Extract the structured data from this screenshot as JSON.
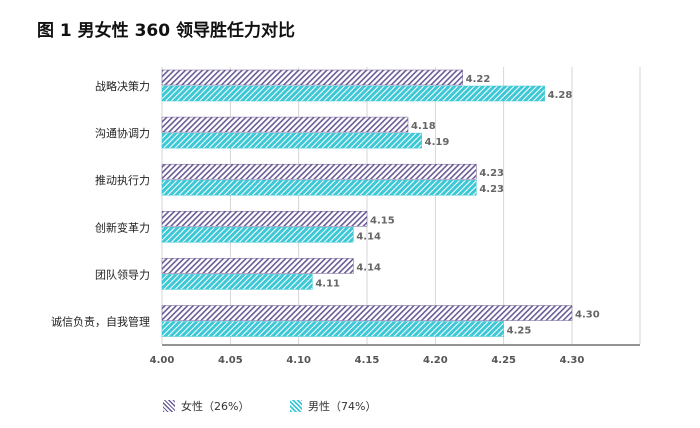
{
  "title": "图 1  男女性 360 领导胜任力对比",
  "colors": {
    "female": "#6b5b95",
    "male": "#3ec8d6",
    "axis": "#555555",
    "gridline": "#cccccc"
  },
  "chart_data": {
    "type": "bar",
    "orientation": "horizontal",
    "categories": [
      "战略决策力",
      "沟通协调力",
      "推动执行力",
      "创新变革力",
      "团队领导力",
      "诚信负责，自我管理"
    ],
    "series": [
      {
        "name": "女性（26%）",
        "values": [
          4.22,
          4.18,
          4.23,
          4.15,
          4.14,
          4.3
        ]
      },
      {
        "name": "男性（74%）",
        "values": [
          4.28,
          4.19,
          4.23,
          4.14,
          4.11,
          4.25
        ]
      }
    ],
    "xlim": [
      4.0,
      4.3
    ],
    "xticks": [
      "4.00",
      "4.05",
      "4.10",
      "4.15",
      "4.20",
      "4.25",
      "4.30"
    ],
    "grid": true,
    "legend_position": "bottom"
  }
}
